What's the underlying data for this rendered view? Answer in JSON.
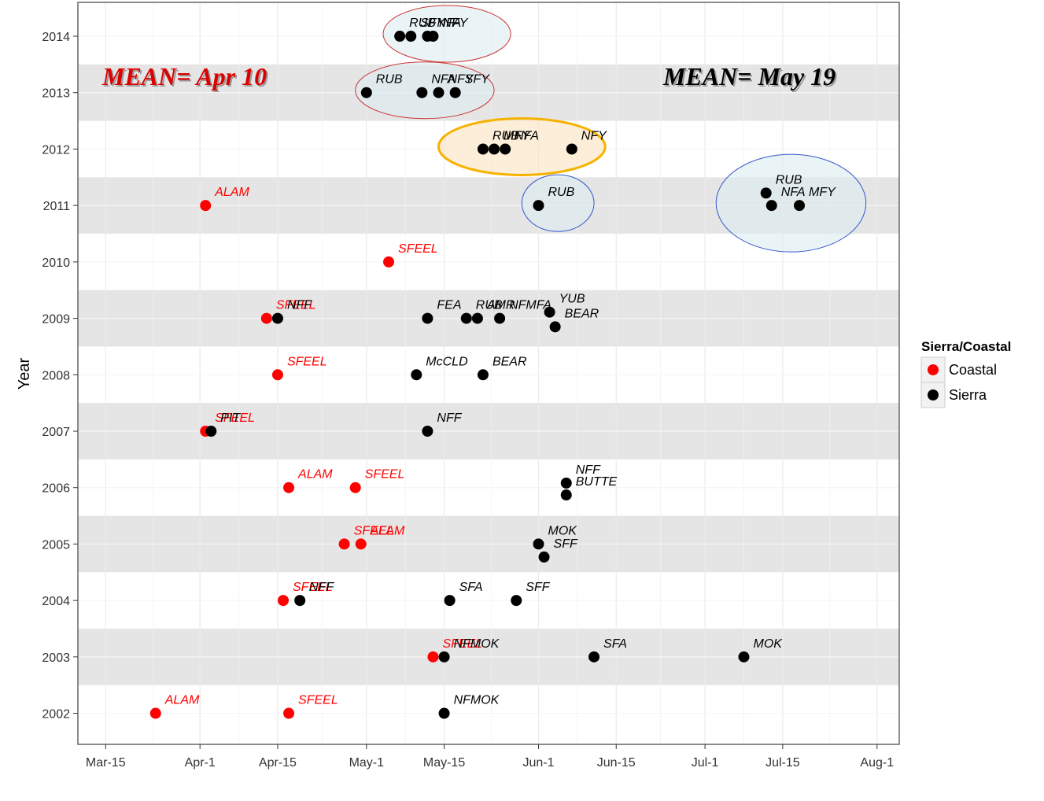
{
  "chart_data": {
    "type": "scatter",
    "title": "",
    "xlabel": "",
    "ylabel": "Year",
    "x_ticks": [
      "Mar-15",
      "Apr-1",
      "Apr-15",
      "May-1",
      "May-15",
      "Jun-1",
      "Jun-15",
      "Jul-1",
      "Jul-15",
      "Aug-1"
    ],
    "y_ticks": [
      "2002",
      "2003",
      "2004",
      "2005",
      "2006",
      "2007",
      "2008",
      "2009",
      "2010",
      "2011",
      "2012",
      "2013",
      "2014"
    ],
    "xlim": [
      "Mar-10",
      "Aug-5"
    ],
    "ylim": [
      2001.45,
      2014.6
    ],
    "grid": true,
    "legend": {
      "title": "Sierra/Coastal",
      "position": "right",
      "entries": [
        {
          "label": "Coastal",
          "color": "#ff0000"
        },
        {
          "label": "Sierra",
          "color": "#000000"
        }
      ]
    },
    "annotations": [
      {
        "text": "MEAN= Apr 10",
        "color": "#dd0000"
      },
      {
        "text": "MEAN= May 19",
        "color": "#000000"
      }
    ],
    "points": [
      {
        "date": "Mar-24",
        "year": 2002,
        "group": "Coastal",
        "label": "ALAM"
      },
      {
        "date": "Apr-17",
        "year": 2002,
        "group": "Coastal",
        "label": "SFEEL"
      },
      {
        "date": "May-15",
        "year": 2002,
        "group": "Sierra",
        "label": "NFMOK"
      },
      {
        "date": "May-13",
        "year": 2003,
        "group": "Coastal",
        "label": "SFEEL"
      },
      {
        "date": "May-15",
        "year": 2003,
        "group": "Sierra",
        "label": "NFMOK"
      },
      {
        "date": "Jun-11",
        "year": 2003,
        "group": "Sierra",
        "label": "SFA"
      },
      {
        "date": "Jul-8",
        "year": 2003,
        "group": "Sierra",
        "label": "MOK"
      },
      {
        "date": "Apr-16",
        "year": 2004,
        "group": "Coastal",
        "label": "SFEEL"
      },
      {
        "date": "Apr-19",
        "year": 2004,
        "group": "Sierra",
        "label": "NFF"
      },
      {
        "date": "May-16",
        "year": 2004,
        "group": "Sierra",
        "label": "SFA"
      },
      {
        "date": "May-28",
        "year": 2004,
        "group": "Sierra",
        "label": "SFF"
      },
      {
        "date": "Apr-27",
        "year": 2005,
        "group": "Coastal",
        "label": "SFEEL"
      },
      {
        "date": "Apr-30",
        "year": 2005,
        "group": "Coastal",
        "label": "ALAM"
      },
      {
        "date": "Jun-1",
        "year": 2005,
        "group": "Sierra",
        "label": "MOK"
      },
      {
        "date": "Jun-2",
        "year": 2004.77,
        "group": "Sierra",
        "label": "SFF"
      },
      {
        "date": "Apr-17",
        "year": 2006,
        "group": "Coastal",
        "label": "ALAM"
      },
      {
        "date": "Apr-29",
        "year": 2006,
        "group": "Coastal",
        "label": "SFEEL"
      },
      {
        "date": "Jun-6",
        "year": 2006.08,
        "group": "Sierra",
        "label": "NFF"
      },
      {
        "date": "Jun-6",
        "year": 2005.87,
        "group": "Sierra",
        "label": "BUTTE"
      },
      {
        "date": "Apr-2",
        "year": 2007,
        "group": "Coastal",
        "label": "SFEEL"
      },
      {
        "date": "Apr-3",
        "year": 2007,
        "group": "Sierra",
        "label": "PIT"
      },
      {
        "date": "May-12",
        "year": 2007,
        "group": "Sierra",
        "label": "NFF"
      },
      {
        "date": "Apr-15",
        "year": 2008,
        "group": "Coastal",
        "label": "SFEEL"
      },
      {
        "date": "May-10",
        "year": 2008,
        "group": "Sierra",
        "label": "McCLD"
      },
      {
        "date": "May-22",
        "year": 2008,
        "group": "Sierra",
        "label": "BEAR"
      },
      {
        "date": "Apr-13",
        "year": 2009,
        "group": "Coastal",
        "label": "SFEEL"
      },
      {
        "date": "Apr-15",
        "year": 2009,
        "group": "Sierra",
        "label": "NFF"
      },
      {
        "date": "May-12",
        "year": 2009,
        "group": "Sierra",
        "label": "FEA"
      },
      {
        "date": "May-19",
        "year": 2009,
        "group": "Sierra",
        "label": "RUB"
      },
      {
        "date": "May-21",
        "year": 2009,
        "group": "Sierra",
        "label": "AMR"
      },
      {
        "date": "May-25",
        "year": 2009,
        "group": "Sierra",
        "label": "NFMFA"
      },
      {
        "date": "Jun-3",
        "year": 2009.11,
        "group": "Sierra",
        "label": "YUB"
      },
      {
        "date": "Jun-4",
        "year": 2008.85,
        "group": "Sierra",
        "label": "BEAR"
      },
      {
        "date": "May-5",
        "year": 2010,
        "group": "Coastal",
        "label": "SFEEL"
      },
      {
        "date": "Apr-2",
        "year": 2011,
        "group": "Coastal",
        "label": "ALAM"
      },
      {
        "date": "Jun-1",
        "year": 2011,
        "group": "Sierra",
        "label": "RUB"
      },
      {
        "date": "Jul-12",
        "year": 2011.22,
        "group": "Sierra",
        "label": "RUB"
      },
      {
        "date": "Jul-13",
        "year": 2011,
        "group": "Sierra",
        "label": "NFA"
      },
      {
        "date": "Jul-18",
        "year": 2011,
        "group": "Sierra",
        "label": "MFY"
      },
      {
        "date": "May-22",
        "year": 2012,
        "group": "Sierra",
        "label": "RUB"
      },
      {
        "date": "May-24",
        "year": 2012,
        "group": "Sierra",
        "label": "MFY"
      },
      {
        "date": "May-26",
        "year": 2012,
        "group": "Sierra",
        "label": "NFA"
      },
      {
        "date": "Jun-7",
        "year": 2012,
        "group": "Sierra",
        "label": "NFY"
      },
      {
        "date": "May-1",
        "year": 2013,
        "group": "Sierra",
        "label": "RUB"
      },
      {
        "date": "May-11",
        "year": 2013,
        "group": "Sierra",
        "label": "NFA"
      },
      {
        "date": "May-14",
        "year": 2013,
        "group": "Sierra",
        "label": "NFY"
      },
      {
        "date": "May-17",
        "year": 2013,
        "group": "Sierra",
        "label": "SFY"
      },
      {
        "date": "May-7",
        "year": 2014,
        "group": "Sierra",
        "label": "RUB"
      },
      {
        "date": "May-9",
        "year": 2014,
        "group": "Sierra",
        "label": "SFY"
      },
      {
        "date": "May-12",
        "year": 2014,
        "group": "Sierra",
        "label": "NFA"
      },
      {
        "date": "May-13",
        "year": 2014,
        "group": "Sierra",
        "label": "NFY"
      }
    ],
    "highlights": [
      {
        "year": 2014,
        "from": "May-4",
        "to": "May-27",
        "fill": "#dcedf0",
        "stroke": "#cc3333"
      },
      {
        "year": 2013,
        "from": "Apr-29",
        "to": "May-24",
        "fill": "#dcedf0",
        "stroke": "#cc3333"
      },
      {
        "year": 2012,
        "from": "May-14",
        "to": "Jun-13",
        "fill": "#fbe3c0",
        "stroke": "#f5b300"
      },
      {
        "year": 2011,
        "from": "May-29",
        "to": "Jun-11",
        "fill": "#dcedf0",
        "stroke": "#3355cc"
      },
      {
        "year": 2011,
        "from": "Jul-3",
        "to": "Jul-30",
        "fill": "#dcedf0",
        "stroke": "#3355cc"
      }
    ]
  }
}
